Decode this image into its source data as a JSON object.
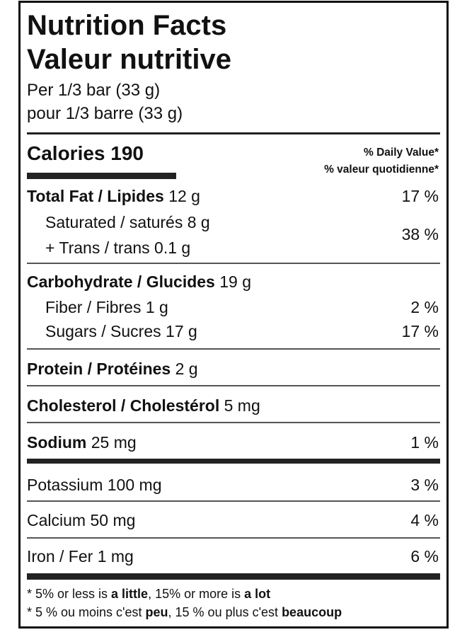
{
  "title_en": "Nutrition Facts",
  "title_fr": "Valeur nutritive",
  "serving_en": "Per 1/3 bar (33 g)",
  "serving_fr": "pour 1/3 barre (33 g)",
  "calories": {
    "label": "Calories",
    "value": "190"
  },
  "daily_value_en": "% Daily Value*",
  "daily_value_fr": "% valeur quotidienne*",
  "nutrients": {
    "total_fat": {
      "label": "Total Fat / Lipides",
      "amount": "12 g",
      "dv": "17 %"
    },
    "saturated": {
      "label": "Saturated / saturés",
      "amount": "8 g"
    },
    "trans": {
      "label": "+ Trans / trans",
      "amount": "0.1 g",
      "dv": "38 %"
    },
    "carbohydrate": {
      "label": "Carbohydrate / Glucides",
      "amount": "19 g"
    },
    "fiber": {
      "label": "Fiber / Fibres",
      "amount": "1 g",
      "dv": "2 %"
    },
    "sugars": {
      "label": "Sugars / Sucres",
      "amount": "17 g",
      "dv": "17 %"
    },
    "protein": {
      "label": "Protein / Protéines",
      "amount": "2 g"
    },
    "cholesterol": {
      "label": "Cholesterol / Cholestérol",
      "amount": "5 mg"
    },
    "sodium": {
      "label": "Sodium",
      "amount": "25 mg",
      "dv": "1 %"
    },
    "potassium": {
      "label": "Potassium",
      "amount": "100 mg",
      "dv": "3 %"
    },
    "calcium": {
      "label": "Calcium",
      "amount": "50 mg",
      "dv": "4 %"
    },
    "iron": {
      "label": "Iron / Fer",
      "amount": "1 mg",
      "dv": "6 %"
    }
  },
  "footnote_en": {
    "a": "* 5% or less is ",
    "b": "a little",
    "c": ", 15% or more is ",
    "d": "a lot"
  },
  "footnote_fr": {
    "a": "* 5 % ou moins c'est ",
    "b": "peu",
    "c": ", 15 % ou plus c'est ",
    "d": "beaucoup"
  }
}
